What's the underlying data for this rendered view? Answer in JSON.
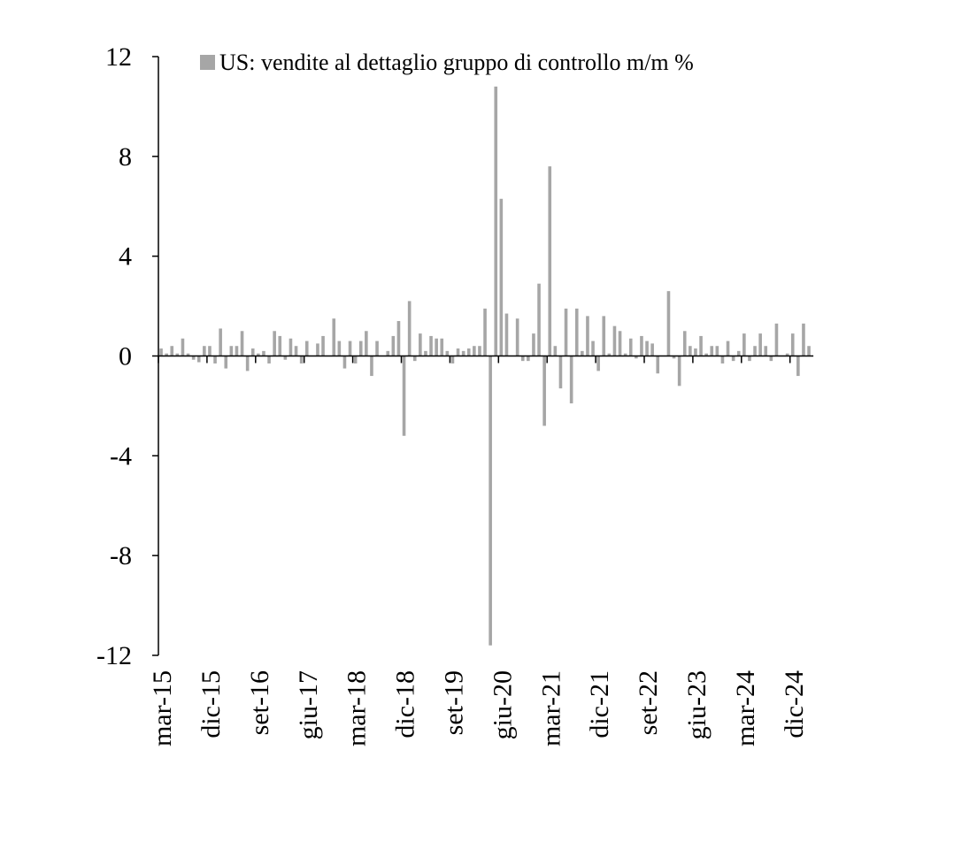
{
  "chart_data": {
    "type": "bar",
    "legend_position": "top",
    "grid": false,
    "ylim": [
      -12,
      12
    ],
    "yticks": [
      "12",
      "8",
      "4",
      "0",
      "-4",
      "-8",
      "-12"
    ],
    "ytick_values": [
      12,
      8,
      4,
      0,
      -4,
      -8,
      -12
    ],
    "xtick_labels": [
      "mar-15",
      "dic-15",
      "set-16",
      "giu-17",
      "mar-18",
      "dic-18",
      "set-19",
      "giu-20",
      "mar-21",
      "dic-21",
      "set-22",
      "giu-23",
      "mar-24",
      "dic-24"
    ],
    "series": [
      {
        "name": "US: vendite al dettaglio gruppo di controllo m/m %",
        "color": "#a6a6a6",
        "start": "mar-15",
        "values": [
          0.3,
          0.1,
          0.4,
          0.1,
          0.7,
          0.1,
          -0.15,
          -0.25,
          0.4,
          0.4,
          -0.3,
          1.1,
          -0.5,
          0.4,
          0.4,
          1.0,
          -0.6,
          0.3,
          0.1,
          0.2,
          -0.3,
          1.0,
          0.8,
          -0.15,
          0.7,
          0.4,
          -0.3,
          0.6,
          0.0,
          0.5,
          0.8,
          0.0,
          1.5,
          0.6,
          -0.5,
          0.6,
          -0.3,
          0.6,
          1.0,
          -0.8,
          0.6,
          0.0,
          0.2,
          0.8,
          1.4,
          -3.2,
          2.2,
          -0.2,
          0.9,
          0.2,
          0.8,
          0.7,
          0.7,
          0.2,
          -0.3,
          0.3,
          0.2,
          0.3,
          0.4,
          0.4,
          1.9,
          -11.6,
          10.8,
          6.3,
          1.7,
          0.0,
          1.5,
          -0.2,
          -0.2,
          0.9,
          2.9,
          -2.8,
          7.6,
          0.4,
          -1.3,
          1.9,
          -1.9,
          1.9,
          0.2,
          1.6,
          0.6,
          -0.6,
          1.6,
          0.1,
          1.2,
          1.0,
          0.1,
          0.7,
          -0.1,
          0.8,
          0.6,
          0.5,
          -0.7,
          0.0,
          2.6,
          -0.1,
          -1.2,
          1.0,
          0.4,
          0.3,
          0.8,
          0.1,
          0.4,
          0.4,
          -0.3,
          0.6,
          -0.2,
          0.2,
          0.9,
          -0.2,
          0.4,
          0.9,
          0.4,
          -0.2,
          1.3,
          0.0,
          0.1,
          0.9,
          -0.8,
          1.3,
          0.4
        ]
      }
    ]
  }
}
